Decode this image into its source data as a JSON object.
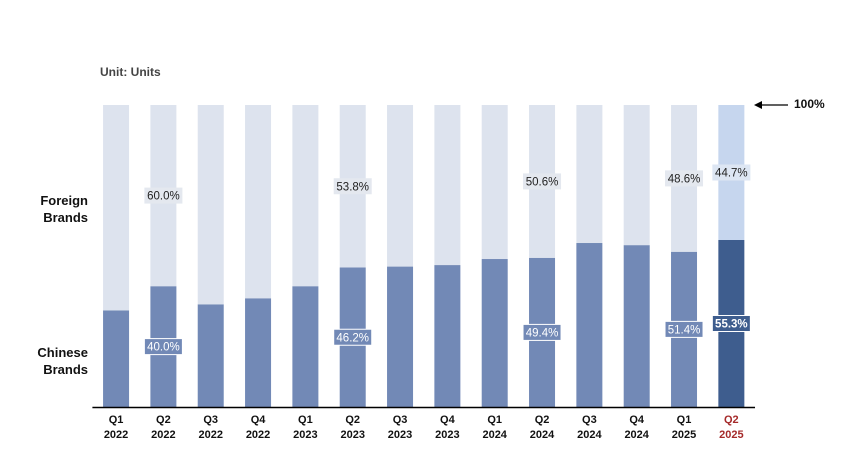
{
  "chart_data": {
    "type": "stacked_bar_100",
    "subtitle": "Unit: Units",
    "annotation": "100%",
    "categories": [
      [
        "Q1",
        "2022"
      ],
      [
        "Q2",
        "2022"
      ],
      [
        "Q3",
        "2022"
      ],
      [
        "Q4",
        "2022"
      ],
      [
        "Q1",
        "2023"
      ],
      [
        "Q2",
        "2023"
      ],
      [
        "Q3",
        "2023"
      ],
      [
        "Q4",
        "2023"
      ],
      [
        "Q1",
        "2024"
      ],
      [
        "Q2",
        "2024"
      ],
      [
        "Q3",
        "2024"
      ],
      [
        "Q4",
        "2024"
      ],
      [
        "Q1",
        "2025"
      ],
      [
        "Q2",
        "2025"
      ]
    ],
    "category_colors": [
      "#111",
      "#111",
      "#111",
      "#111",
      "#111",
      "#111",
      "#111",
      "#111",
      "#111",
      "#111",
      "#111",
      "#111",
      "#111",
      "#a52a2a"
    ],
    "series": [
      {
        "name": "Chinese Brands",
        "colors": [
          "#7289b6",
          "#7289b6",
          "#7289b6",
          "#7289b6",
          "#7289b6",
          "#7289b6",
          "#7289b6",
          "#7289b6",
          "#7289b6",
          "#7289b6",
          "#7289b6",
          "#7289b6",
          "#7289b6",
          "#3e5d8e"
        ],
        "values": [
          32,
          40.0,
          34,
          36,
          40,
          46.2,
          46.5,
          47,
          49,
          49.4,
          54.3,
          53.6,
          51.4,
          55.3
        ],
        "value_labels": [
          null,
          "40.0%",
          null,
          null,
          null,
          "46.2%",
          null,
          null,
          null,
          "49.4%",
          null,
          null,
          "51.4%",
          "55.3%"
        ]
      },
      {
        "name": "Foreign Brands",
        "colors": [
          "#dde3ee",
          "#dde3ee",
          "#dde3ee",
          "#dde3ee",
          "#dde3ee",
          "#dde3ee",
          "#dde3ee",
          "#dde3ee",
          "#dde3ee",
          "#dde3ee",
          "#dde3ee",
          "#dde3ee",
          "#dde3ee",
          "#c6d6ee"
        ],
        "values": [
          68,
          60.0,
          66,
          64,
          60,
          53.8,
          53.5,
          53,
          51,
          50.6,
          45.7,
          46.4,
          48.6,
          44.7
        ],
        "value_labels": [
          null,
          "60.0%",
          null,
          null,
          null,
          "53.8%",
          null,
          null,
          null,
          "50.6%",
          null,
          null,
          "48.6%",
          "44.7%"
        ]
      }
    ],
    "ylim": [
      0,
      100
    ]
  }
}
